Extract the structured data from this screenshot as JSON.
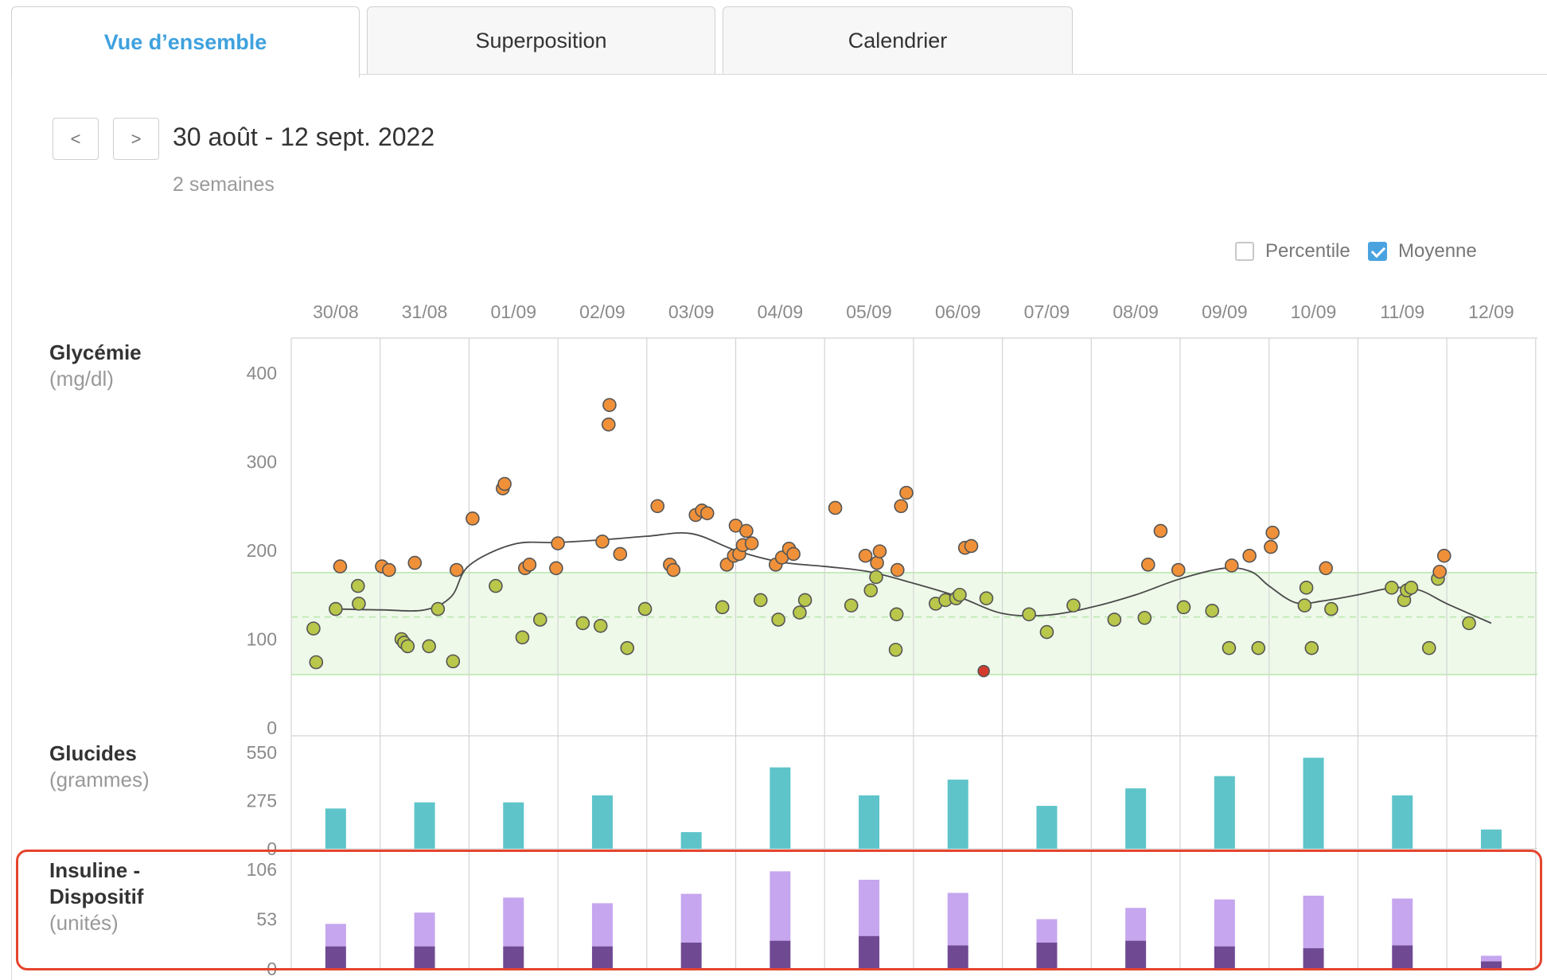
{
  "tabs": [
    {
      "label": "Vue d’ensemble",
      "active": true
    },
    {
      "label": "Superposition",
      "active": false
    },
    {
      "label": "Calendrier",
      "active": false
    }
  ],
  "nav": {
    "prev_label": "<",
    "next_label": ">",
    "date_range": "30 août - 12 sept. 2022",
    "subtitle": "2 semaines"
  },
  "toggles": {
    "percentile_label": "Percentile",
    "percentile_checked": false,
    "average_label": "Moyenne",
    "average_checked": true
  },
  "colors": {
    "glucose_high": "#f0913a",
    "glucose_normal": "#b9c74a",
    "glucose_low": "#d33a2c",
    "target_band": "#eef9ea",
    "carbs": "#5ec4c9",
    "insulin_basal": "#c6a6ef",
    "insulin_bolus": "#6f4a93",
    "highlight": "#e5442e",
    "accent": "#3ea1de"
  },
  "chart_data": [
    {
      "type": "scatter",
      "title": "Glycémie",
      "unit": "(mg/dl)",
      "x_labels": [
        "30/08",
        "31/08",
        "01/09",
        "02/09",
        "03/09",
        "04/09",
        "05/09",
        "06/09",
        "07/09",
        "08/09",
        "09/09",
        "10/09",
        "11/09",
        "12/09"
      ],
      "ylim": [
        0,
        450
      ],
      "yticks": [
        "400",
        "300",
        "200",
        "100",
        "0"
      ],
      "ytick_values": [
        400,
        300,
        200,
        100,
        0
      ],
      "target_range": [
        60,
        175
      ],
      "target_mid": 125,
      "points": [
        [
          0.25,
          112,
          "n"
        ],
        [
          0.28,
          74,
          "n"
        ],
        [
          0.5,
          134,
          "n"
        ],
        [
          0.55,
          182,
          "h"
        ],
        [
          0.75,
          160,
          "n"
        ],
        [
          0.76,
          140,
          "n"
        ],
        [
          1.02,
          182,
          "h"
        ],
        [
          1.1,
          178,
          "h"
        ],
        [
          1.24,
          100,
          "n"
        ],
        [
          1.27,
          96,
          "n"
        ],
        [
          1.31,
          92,
          "n"
        ],
        [
          1.39,
          186,
          "h"
        ],
        [
          1.55,
          92,
          "n"
        ],
        [
          1.65,
          134,
          "n"
        ],
        [
          1.82,
          75,
          "n"
        ],
        [
          1.86,
          178,
          "h"
        ],
        [
          2.04,
          236,
          "h"
        ],
        [
          2.3,
          160,
          "n"
        ],
        [
          2.38,
          270,
          "h"
        ],
        [
          2.4,
          275,
          "h"
        ],
        [
          2.6,
          102,
          "n"
        ],
        [
          2.63,
          180,
          "h"
        ],
        [
          2.68,
          184,
          "h"
        ],
        [
          2.8,
          122,
          "n"
        ],
        [
          2.98,
          180,
          "h"
        ],
        [
          3.0,
          208,
          "h"
        ],
        [
          3.28,
          118,
          "n"
        ],
        [
          3.48,
          115,
          "n"
        ],
        [
          3.5,
          210,
          "h"
        ],
        [
          3.57,
          342,
          "h"
        ],
        [
          3.58,
          364,
          "h"
        ],
        [
          3.7,
          196,
          "h"
        ],
        [
          3.78,
          90,
          "n"
        ],
        [
          3.98,
          134,
          "n"
        ],
        [
          4.12,
          250,
          "h"
        ],
        [
          4.26,
          184,
          "h"
        ],
        [
          4.3,
          178,
          "h"
        ],
        [
          4.55,
          240,
          "h"
        ],
        [
          4.62,
          245,
          "h"
        ],
        [
          4.68,
          242,
          "h"
        ],
        [
          4.85,
          136,
          "n"
        ],
        [
          4.9,
          184,
          "h"
        ],
        [
          4.98,
          194,
          "h"
        ],
        [
          5.0,
          228,
          "h"
        ],
        [
          5.04,
          196,
          "h"
        ],
        [
          5.08,
          206,
          "h"
        ],
        [
          5.12,
          222,
          "h"
        ],
        [
          5.18,
          208,
          "h"
        ],
        [
          5.28,
          144,
          "n"
        ],
        [
          5.45,
          184,
          "h"
        ],
        [
          5.48,
          122,
          "n"
        ],
        [
          5.52,
          192,
          "h"
        ],
        [
          5.6,
          202,
          "h"
        ],
        [
          5.65,
          196,
          "h"
        ],
        [
          5.72,
          130,
          "n"
        ],
        [
          5.78,
          144,
          "n"
        ],
        [
          6.12,
          248,
          "h"
        ],
        [
          6.3,
          138,
          "n"
        ],
        [
          6.46,
          194,
          "h"
        ],
        [
          6.52,
          155,
          "n"
        ],
        [
          6.58,
          170,
          "n"
        ],
        [
          6.59,
          186,
          "h"
        ],
        [
          6.62,
          199,
          "h"
        ],
        [
          6.8,
          88,
          "n"
        ],
        [
          6.81,
          128,
          "n"
        ],
        [
          6.82,
          178,
          "h"
        ],
        [
          6.86,
          250,
          "h"
        ],
        [
          6.92,
          265,
          "h"
        ],
        [
          7.25,
          140,
          "n"
        ],
        [
          7.36,
          144,
          "n"
        ],
        [
          7.48,
          146,
          "n"
        ],
        [
          7.52,
          150,
          "n"
        ],
        [
          7.58,
          203,
          "h"
        ],
        [
          7.65,
          205,
          "h"
        ],
        [
          7.79,
          64,
          "l"
        ],
        [
          7.82,
          146,
          "n"
        ],
        [
          8.3,
          128,
          "n"
        ],
        [
          8.5,
          108,
          "n"
        ],
        [
          8.8,
          138,
          "n"
        ],
        [
          9.26,
          122,
          "n"
        ],
        [
          9.6,
          124,
          "n"
        ],
        [
          9.64,
          184,
          "h"
        ],
        [
          9.78,
          222,
          "h"
        ],
        [
          9.98,
          178,
          "h"
        ],
        [
          10.04,
          136,
          "n"
        ],
        [
          10.36,
          132,
          "n"
        ],
        [
          10.55,
          90,
          "n"
        ],
        [
          10.58,
          183,
          "h"
        ],
        [
          10.78,
          194,
          "h"
        ],
        [
          10.88,
          90,
          "n"
        ],
        [
          11.02,
          204,
          "h"
        ],
        [
          11.04,
          220,
          "h"
        ],
        [
          11.4,
          138,
          "n"
        ],
        [
          11.42,
          158,
          "n"
        ],
        [
          11.48,
          90,
          "n"
        ],
        [
          11.64,
          180,
          "h"
        ],
        [
          11.7,
          134,
          "n"
        ],
        [
          12.38,
          158,
          "n"
        ],
        [
          12.52,
          144,
          "n"
        ],
        [
          12.55,
          155,
          "n"
        ],
        [
          12.6,
          158,
          "n"
        ],
        [
          12.8,
          90,
          "n"
        ],
        [
          12.9,
          168,
          "n"
        ],
        [
          12.92,
          176,
          "h"
        ],
        [
          12.97,
          194,
          "h"
        ],
        [
          13.25,
          118,
          "n"
        ]
      ],
      "average_line": [
        [
          0.5,
          134
        ],
        [
          1.0,
          133
        ],
        [
          1.5,
          133
        ],
        [
          1.8,
          148
        ],
        [
          2.0,
          183
        ],
        [
          2.5,
          207
        ],
        [
          3.0,
          209
        ],
        [
          3.5,
          212
        ],
        [
          4.0,
          216
        ],
        [
          4.5,
          219
        ],
        [
          5.0,
          200
        ],
        [
          5.5,
          187
        ],
        [
          6.0,
          182
        ],
        [
          6.5,
          176
        ],
        [
          7.0,
          163
        ],
        [
          7.5,
          148
        ],
        [
          8.0,
          129
        ],
        [
          8.5,
          127
        ],
        [
          9.0,
          136
        ],
        [
          9.5,
          150
        ],
        [
          10.0,
          168
        ],
        [
          10.5,
          180
        ],
        [
          10.8,
          176
        ],
        [
          11.0,
          160
        ],
        [
          11.3,
          141
        ],
        [
          11.6,
          143
        ],
        [
          12.0,
          150
        ],
        [
          12.4,
          158
        ],
        [
          12.7,
          155
        ],
        [
          13.0,
          140
        ],
        [
          13.5,
          118
        ]
      ]
    },
    {
      "type": "bar",
      "title": "Glucides",
      "unit": "(grammes)",
      "categories": [
        "30/08",
        "31/08",
        "01/09",
        "02/09",
        "03/09",
        "04/09",
        "05/09",
        "06/09",
        "07/09",
        "08/09",
        "09/09",
        "10/09",
        "11/09",
        "12/09"
      ],
      "ylim": [
        0,
        550
      ],
      "yticks": [
        "550",
        "275",
        "0"
      ],
      "ytick_values": [
        550,
        275,
        0
      ],
      "values": [
        230,
        265,
        265,
        305,
        95,
        465,
        305,
        395,
        245,
        345,
        415,
        520,
        305,
        110
      ]
    },
    {
      "type": "bar",
      "stacked": true,
      "title": "Insuline -",
      "title2": "Dispositif",
      "unit": "(unités)",
      "categories": [
        "30/08",
        "31/08",
        "01/09",
        "02/09",
        "03/09",
        "04/09",
        "05/09",
        "06/09",
        "07/09",
        "08/09",
        "09/09",
        "10/09",
        "11/09",
        "12/09"
      ],
      "ylim": [
        0,
        106
      ],
      "yticks": [
        "106",
        "53",
        "0"
      ],
      "ytick_values": [
        106,
        53,
        0
      ],
      "series": [
        {
          "values": [
            24,
            24,
            24,
            24,
            28,
            30,
            35,
            25,
            28,
            30,
            24,
            22,
            25,
            8
          ]
        },
        {
          "values": [
            24,
            36,
            52,
            46,
            52,
            74,
            60,
            56,
            25,
            35,
            50,
            56,
            50,
            6
          ]
        }
      ]
    }
  ]
}
